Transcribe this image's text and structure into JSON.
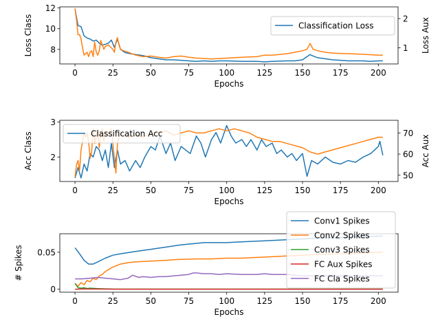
{
  "chart_data": [
    {
      "type": "line",
      "xlabel": "Epochs",
      "ylabel": "Loss Class",
      "ylabel_right": "Loss Aux",
      "xlim": [
        -10,
        213
      ],
      "ylim": [
        6.6,
        12.1
      ],
      "ylim_right": [
        0.45,
        2.4
      ],
      "xticks": [
        0,
        25,
        50,
        75,
        100,
        125,
        150,
        175,
        200
      ],
      "yticks": [
        8,
        10,
        12
      ],
      "yticks_right": [
        1,
        2
      ],
      "legend": {
        "entries": [
          "Classification Loss"
        ],
        "placement": "top-right"
      },
      "series": [
        {
          "name": "Classification Loss",
          "axis": "left",
          "color": "#1f77b4",
          "x": [
            0,
            2,
            4,
            6,
            8,
            10,
            12,
            14,
            16,
            18,
            20,
            22,
            24,
            26,
            28,
            30,
            33,
            36,
            40,
            45,
            50,
            55,
            60,
            65,
            70,
            75,
            80,
            85,
            90,
            95,
            100,
            110,
            120,
            125,
            130,
            140,
            145,
            150,
            152,
            155,
            158,
            160,
            165,
            170,
            175,
            180,
            185,
            190,
            195,
            200,
            203
          ],
          "values": [
            11.9,
            10.3,
            10.2,
            9.3,
            9.1,
            9.0,
            8.8,
            8.9,
            8.6,
            8.4,
            8.5,
            8.6,
            8.9,
            8.2,
            9.0,
            8.0,
            7.7,
            7.6,
            7.5,
            7.4,
            7.2,
            7.1,
            7.0,
            7.0,
            6.95,
            6.9,
            6.85,
            6.9,
            6.85,
            6.9,
            6.9,
            6.85,
            6.85,
            6.8,
            6.85,
            6.9,
            6.9,
            7.0,
            7.2,
            7.5,
            7.3,
            7.2,
            7.1,
            7.0,
            6.95,
            6.9,
            6.9,
            6.9,
            6.85,
            6.9,
            6.9
          ]
        },
        {
          "name": "Loss Aux",
          "axis": "right",
          "color": "#ff7f0e",
          "x": [
            0,
            1,
            2,
            3,
            4,
            5,
            6,
            7,
            8,
            9,
            10,
            11,
            12,
            13,
            14,
            15,
            16,
            17,
            18,
            19,
            20,
            22,
            24,
            25,
            26,
            27,
            28,
            29,
            30,
            32,
            35,
            40,
            45,
            50,
            55,
            60,
            65,
            70,
            75,
            80,
            90,
            100,
            110,
            120,
            125,
            130,
            140,
            145,
            150,
            153,
            155,
            157,
            160,
            165,
            170,
            180,
            190,
            200,
            203
          ],
          "values": [
            2.35,
            1.95,
            1.45,
            1.45,
            1.3,
            1.0,
            0.75,
            0.8,
            0.85,
            0.7,
            0.85,
            0.9,
            0.7,
            1.2,
            0.85,
            0.75,
            0.9,
            1.25,
            1.1,
            0.95,
            1.05,
            1.1,
            1.0,
            0.95,
            0.85,
            1.2,
            1.35,
            1.1,
            0.95,
            0.9,
            0.85,
            0.75,
            0.7,
            0.72,
            0.68,
            0.65,
            0.7,
            0.72,
            0.68,
            0.65,
            0.62,
            0.65,
            0.68,
            0.7,
            0.75,
            0.75,
            0.8,
            0.85,
            0.9,
            0.95,
            1.15,
            0.95,
            0.9,
            0.85,
            0.82,
            0.8,
            0.78,
            0.75,
            0.75
          ]
        }
      ]
    },
    {
      "type": "line",
      "xlabel": "Epochs",
      "ylabel": "Acc Class",
      "ylabel_right": "Acc Aux",
      "xlim": [
        -10,
        213
      ],
      "ylim": [
        1.3,
        3.05
      ],
      "ylim_right": [
        47,
        76
      ],
      "xticks": [
        0,
        25,
        50,
        75,
        100,
        125,
        150,
        175,
        200
      ],
      "yticks": [
        2,
        3
      ],
      "yticks_right": [
        50,
        60,
        70
      ],
      "legend": {
        "entries": [
          "Classification Acc"
        ],
        "placement": "top-left"
      },
      "series": [
        {
          "name": "Classification Acc",
          "axis": "left",
          "color": "#1f77b4",
          "x": [
            0,
            2,
            4,
            6,
            8,
            10,
            12,
            14,
            16,
            18,
            20,
            22,
            24,
            26,
            28,
            30,
            33,
            36,
            40,
            43,
            46,
            50,
            53,
            56,
            60,
            63,
            66,
            70,
            73,
            76,
            80,
            83,
            86,
            90,
            93,
            96,
            100,
            103,
            106,
            110,
            113,
            116,
            120,
            123,
            126,
            130,
            133,
            136,
            140,
            143,
            146,
            150,
            153,
            156,
            160,
            165,
            170,
            175,
            180,
            185,
            190,
            195,
            200,
            201,
            203
          ],
          "values": [
            1.4,
            1.7,
            1.4,
            1.8,
            1.6,
            2.1,
            2.0,
            2.3,
            2.2,
            1.9,
            2.2,
            1.7,
            2.4,
            1.7,
            2.2,
            1.8,
            1.9,
            1.6,
            1.9,
            1.7,
            2.0,
            2.3,
            2.2,
            2.6,
            2.1,
            2.4,
            1.9,
            2.3,
            2.2,
            2.1,
            2.6,
            2.4,
            2.0,
            2.5,
            2.7,
            2.4,
            2.9,
            2.6,
            2.4,
            2.5,
            2.3,
            2.5,
            2.2,
            2.5,
            2.3,
            2.4,
            2.1,
            2.2,
            2.0,
            2.1,
            1.9,
            2.1,
            1.45,
            1.9,
            1.8,
            2.0,
            1.85,
            1.8,
            1.9,
            1.85,
            2.0,
            2.1,
            2.3,
            2.45,
            2.05
          ]
        },
        {
          "name": "Acc Aux",
          "axis": "right",
          "color": "#ff7f0e",
          "x": [
            0,
            1,
            2,
            3,
            4,
            5,
            6,
            7,
            8,
            9,
            10,
            11,
            12,
            13,
            14,
            15,
            16,
            17,
            18,
            19,
            20,
            22,
            24,
            25,
            26,
            27,
            28,
            30,
            35,
            40,
            45,
            50,
            55,
            60,
            65,
            70,
            75,
            80,
            85,
            90,
            95,
            100,
            105,
            110,
            115,
            120,
            125,
            130,
            135,
            140,
            145,
            150,
            155,
            160,
            165,
            170,
            175,
            180,
            185,
            190,
            195,
            200,
            203
          ],
          "values": [
            49,
            55,
            57,
            52,
            62,
            66,
            70,
            68,
            70,
            66,
            58,
            61,
            72,
            65,
            68,
            71,
            63,
            70,
            72,
            66,
            71,
            69,
            72,
            65,
            58,
            51,
            65,
            70,
            68,
            69,
            68,
            70,
            70,
            71,
            69,
            70,
            71,
            70,
            70,
            71,
            72,
            71,
            72,
            71,
            70,
            68,
            67,
            66,
            66,
            65,
            64,
            63,
            61,
            60,
            61,
            62,
            63,
            64,
            65,
            66,
            67,
            68,
            68
          ]
        }
      ]
    },
    {
      "type": "line",
      "xlabel": "Epochs",
      "ylabel": "# Spikes",
      "xlim": [
        -10,
        213
      ],
      "ylim": [
        -0.004,
        0.075
      ],
      "xticks": [
        0,
        25,
        50,
        75,
        100,
        125,
        150,
        175,
        200
      ],
      "yticks": [
        0.0,
        0.05
      ],
      "legend": {
        "entries": [
          "Conv1 Spikes",
          "Conv2 Spikes",
          "Conv3 Spikes",
          "FC Aux Spikes",
          "FC Cla Spikes"
        ],
        "placement": "upper-right"
      },
      "series": [
        {
          "name": "Conv1 Spikes",
          "color": "#1f77b4",
          "x": [
            0,
            3,
            6,
            9,
            12,
            15,
            20,
            25,
            30,
            40,
            50,
            60,
            70,
            80,
            85,
            90,
            100,
            110,
            120,
            130,
            140,
            150,
            160,
            175,
            190,
            203
          ],
          "values": [
            0.056,
            0.048,
            0.039,
            0.034,
            0.034,
            0.037,
            0.042,
            0.046,
            0.048,
            0.051,
            0.054,
            0.057,
            0.06,
            0.062,
            0.063,
            0.063,
            0.063,
            0.064,
            0.065,
            0.066,
            0.067,
            0.068,
            0.069,
            0.07,
            0.071,
            0.072
          ]
        },
        {
          "name": "Conv2 Spikes",
          "color": "#ff7f0e",
          "x": [
            0,
            2,
            4,
            6,
            8,
            10,
            12,
            14,
            16,
            18,
            20,
            25,
            30,
            35,
            40,
            50,
            60,
            65,
            80,
            90,
            100,
            110,
            120,
            130,
            140,
            150,
            160,
            175,
            190,
            203
          ],
          "values": [
            0.008,
            0.004,
            0.009,
            0.006,
            0.012,
            0.01,
            0.015,
            0.013,
            0.018,
            0.02,
            0.024,
            0.03,
            0.034,
            0.036,
            0.037,
            0.038,
            0.039,
            0.04,
            0.041,
            0.041,
            0.042,
            0.042,
            0.043,
            0.044,
            0.045,
            0.046,
            0.047,
            0.048,
            0.049,
            0.05
          ]
        },
        {
          "name": "Conv3 Spikes",
          "color": "#2ca02c",
          "x": [
            0,
            2,
            4,
            6,
            8,
            10,
            15,
            20,
            25,
            50,
            100,
            150,
            203
          ],
          "values": [
            0.008,
            0.002,
            0.0015,
            0.002,
            0.001,
            0.0015,
            0.0008,
            0.0006,
            0.0003,
            0.0002,
            0.0002,
            0.0002,
            0.0002
          ]
        },
        {
          "name": "FC Aux Spikes",
          "color": "#d62728",
          "x": [
            0,
            5,
            10,
            20,
            30,
            50,
            100,
            150,
            203
          ],
          "values": [
            0.0,
            0.0005,
            0.0003,
            0.0002,
            0.0001,
            0.0001,
            0.0001,
            0.0001,
            0.0001
          ]
        },
        {
          "name": "FC Cla Spikes",
          "color": "#9467bd",
          "x": [
            0,
            5,
            10,
            15,
            20,
            25,
            30,
            35,
            38,
            42,
            45,
            50,
            55,
            60,
            65,
            70,
            75,
            78,
            80,
            85,
            90,
            95,
            100,
            110,
            120,
            125,
            130,
            140,
            145,
            150,
            160,
            170,
            180,
            190,
            200,
            203
          ],
          "values": [
            0.014,
            0.014,
            0.015,
            0.016,
            0.015,
            0.014,
            0.013,
            0.015,
            0.019,
            0.016,
            0.017,
            0.016,
            0.017,
            0.017,
            0.018,
            0.019,
            0.02,
            0.022,
            0.022,
            0.021,
            0.021,
            0.02,
            0.021,
            0.02,
            0.02,
            0.021,
            0.02,
            0.02,
            0.019,
            0.018,
            0.018,
            0.018,
            0.018,
            0.018,
            0.018,
            0.018
          ]
        }
      ]
    }
  ]
}
